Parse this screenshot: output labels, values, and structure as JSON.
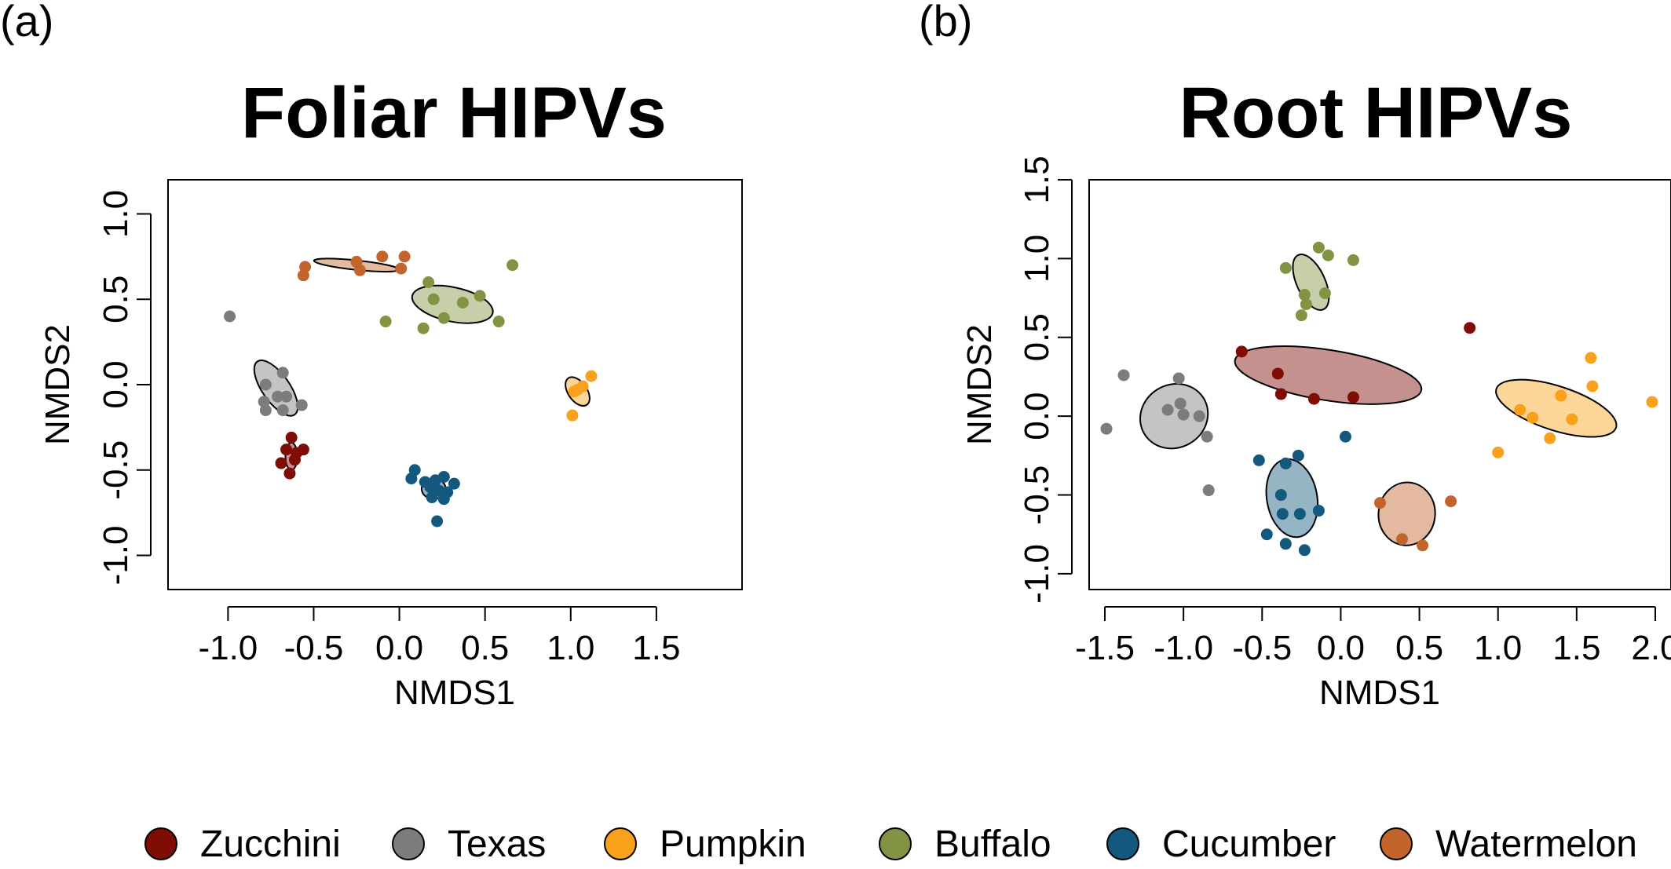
{
  "panels": [
    {
      "label": "(a)",
      "title": "Foliar HIPVs",
      "xlabel": "NMDS1",
      "ylabel": "NMDS2"
    },
    {
      "label": "(b)",
      "title": "Root HIPVs",
      "xlabel": "NMDS1",
      "ylabel": "NMDS2"
    }
  ],
  "legend": {
    "placement": "bottom",
    "items": [
      {
        "name": "Zucchini",
        "color": "#7f0c05"
      },
      {
        "name": "Texas",
        "color": "#7c7c7c"
      },
      {
        "name": "Pumpkin",
        "color": "#f9a11b"
      },
      {
        "name": "Buffalo",
        "color": "#829443"
      },
      {
        "name": "Cucumber",
        "color": "#14597d"
      },
      {
        "name": "Watermelon",
        "color": "#c2642b"
      }
    ]
  },
  "chart_data": [
    {
      "type": "scatter",
      "title": "Foliar HIPVs",
      "xlabel": "NMDS1",
      "ylabel": "NMDS2",
      "xlim": [
        -1.35,
        2.0
      ],
      "ylim": [
        -1.2,
        1.2
      ],
      "x_ticks": [
        -1.0,
        -0.5,
        0.0,
        0.5,
        1.0,
        1.5
      ],
      "x_tick_labels": [
        "-1.0",
        "-0.5",
        "0.0",
        "0.5",
        "1.0",
        "1.5"
      ],
      "y_ticks": [
        -1.0,
        -0.5,
        0.0,
        0.5,
        1.0
      ],
      "y_tick_labels": [
        "-1.0",
        "-0.5",
        "0.0",
        "0.5",
        "1.0"
      ],
      "series": [
        {
          "name": "Zucchini",
          "color": "#7f0c05",
          "points": [
            [
              -0.63,
              -0.31
            ],
            [
              -0.66,
              -0.38
            ],
            [
              -0.56,
              -0.38
            ],
            [
              -0.69,
              -0.46
            ],
            [
              -0.61,
              -0.44
            ],
            [
              -0.64,
              -0.52
            ],
            [
              -0.6,
              -0.4
            ]
          ],
          "ellipse": {
            "cx": -0.63,
            "cy": -0.42,
            "rx": 0.035,
            "ry": 0.08,
            "angle": 0
          }
        },
        {
          "name": "Texas",
          "color": "#7c7c7c",
          "points": [
            [
              -0.99,
              0.4
            ],
            [
              -0.68,
              0.07
            ],
            [
              -0.78,
              0.0
            ],
            [
              -0.71,
              -0.07
            ],
            [
              -0.66,
              -0.07
            ],
            [
              -0.79,
              -0.1
            ],
            [
              -0.68,
              -0.15
            ],
            [
              -0.78,
              -0.15
            ],
            [
              -0.57,
              -0.12
            ]
          ],
          "ellipse": {
            "cx": -0.72,
            "cy": -0.02,
            "rx": 0.08,
            "ry": 0.19,
            "angle": 35
          }
        },
        {
          "name": "Pumpkin",
          "color": "#f9a11b",
          "points": [
            [
              1.12,
              0.05
            ],
            [
              1.02,
              -0.04
            ],
            [
              1.04,
              -0.03
            ],
            [
              1.07,
              -0.01
            ],
            [
              1.01,
              -0.18
            ]
          ],
          "ellipse": {
            "cx": 1.04,
            "cy": -0.04,
            "rx": 0.055,
            "ry": 0.095,
            "angle": 35
          }
        },
        {
          "name": "Buffalo",
          "color": "#829443",
          "points": [
            [
              0.66,
              0.7
            ],
            [
              0.17,
              0.6
            ],
            [
              0.2,
              0.5
            ],
            [
              0.47,
              0.52
            ],
            [
              0.37,
              0.48
            ],
            [
              -0.08,
              0.37
            ],
            [
              0.26,
              0.39
            ],
            [
              0.58,
              0.37
            ],
            [
              0.14,
              0.33
            ]
          ],
          "ellipse": {
            "cx": 0.31,
            "cy": 0.47,
            "rx": 0.24,
            "ry": 0.1,
            "angle": -12
          }
        },
        {
          "name": "Cucumber",
          "color": "#14597d",
          "points": [
            [
              0.09,
              -0.5
            ],
            [
              0.07,
              -0.55
            ],
            [
              0.15,
              -0.57
            ],
            [
              0.21,
              -0.56
            ],
            [
              0.26,
              -0.54
            ],
            [
              0.18,
              -0.6
            ],
            [
              0.32,
              -0.58
            ],
            [
              0.23,
              -0.62
            ],
            [
              0.28,
              -0.63
            ],
            [
              0.19,
              -0.66
            ],
            [
              0.26,
              -0.67
            ],
            [
              0.22,
              -0.8
            ]
          ],
          "ellipse": {
            "cx": 0.2,
            "cy": -0.61,
            "rx": 0.07,
            "ry": 0.06,
            "angle": 0
          }
        },
        {
          "name": "Watermelon",
          "color": "#c2642b",
          "points": [
            [
              -0.55,
              0.69
            ],
            [
              -0.56,
              0.64
            ],
            [
              -0.25,
              0.72
            ],
            [
              -0.1,
              0.75
            ],
            [
              0.03,
              0.75
            ],
            [
              -0.23,
              0.67
            ],
            [
              0.01,
              0.68
            ]
          ],
          "ellipse": {
            "cx": -0.25,
            "cy": 0.7,
            "rx": 0.25,
            "ry": 0.028,
            "angle": -6
          }
        }
      ]
    },
    {
      "type": "scatter",
      "title": "Root HIPVs",
      "xlabel": "NMDS1",
      "ylabel": "NMDS2",
      "xlim": [
        -1.6,
        2.1
      ],
      "ylim": [
        -1.1,
        1.5
      ],
      "x_ticks": [
        -1.5,
        -1.0,
        -0.5,
        0.0,
        0.5,
        1.0,
        1.5,
        2.0
      ],
      "x_tick_labels": [
        "-1.5",
        "-1.0",
        "-0.5",
        "0.0",
        "0.5",
        "1.0",
        "1.5",
        "2.0"
      ],
      "y_ticks": [
        -1.0,
        -0.5,
        0.0,
        0.5,
        1.0,
        1.5
      ],
      "y_tick_labels": [
        "-1.0",
        "-0.5",
        "0.0",
        "0.5",
        "1.0",
        "1.5"
      ],
      "series": [
        {
          "name": "Zucchini",
          "color": "#7f0c05",
          "points": [
            [
              0.82,
              0.56
            ],
            [
              -0.63,
              0.41
            ],
            [
              -0.4,
              0.27
            ],
            [
              -0.38,
              0.14
            ],
            [
              -0.17,
              0.11
            ],
            [
              0.08,
              0.12
            ]
          ],
          "ellipse": {
            "cx": -0.08,
            "cy": 0.26,
            "rx": 0.6,
            "ry": 0.16,
            "angle": -9
          }
        },
        {
          "name": "Texas",
          "color": "#7c7c7c",
          "points": [
            [
              -1.38,
              0.26
            ],
            [
              -1.03,
              0.24
            ],
            [
              -1.49,
              -0.08
            ],
            [
              -1.1,
              0.04
            ],
            [
              -1.02,
              0.08
            ],
            [
              -1.0,
              0.01
            ],
            [
              -0.9,
              0.0
            ],
            [
              -0.85,
              -0.13
            ],
            [
              -0.84,
              -0.47
            ]
          ],
          "ellipse": {
            "cx": -1.06,
            "cy": 0.0,
            "rx": 0.22,
            "ry": 0.2,
            "angle": 30
          }
        },
        {
          "name": "Pumpkin",
          "color": "#f9a11b",
          "points": [
            [
              1.59,
              0.37
            ],
            [
              1.98,
              0.09
            ],
            [
              1.14,
              0.04
            ],
            [
              1.4,
              0.13
            ],
            [
              1.6,
              0.19
            ],
            [
              1.22,
              -0.01
            ],
            [
              1.47,
              -0.02
            ],
            [
              1.33,
              -0.14
            ],
            [
              1.0,
              -0.23
            ]
          ],
          "ellipse": {
            "cx": 1.37,
            "cy": 0.05,
            "rx": 0.4,
            "ry": 0.14,
            "angle": -18
          }
        },
        {
          "name": "Buffalo",
          "color": "#829443",
          "points": [
            [
              -0.14,
              1.07
            ],
            [
              -0.08,
              1.02
            ],
            [
              0.08,
              0.99
            ],
            [
              -0.35,
              0.94
            ],
            [
              -0.23,
              0.77
            ],
            [
              -0.1,
              0.78
            ],
            [
              -0.22,
              0.71
            ],
            [
              -0.25,
              0.64
            ]
          ],
          "ellipse": {
            "cx": -0.19,
            "cy": 0.85,
            "rx": 0.09,
            "ry": 0.19,
            "angle": 25
          }
        },
        {
          "name": "Cucumber",
          "color": "#14597d",
          "points": [
            [
              -0.27,
              -0.25
            ],
            [
              -0.35,
              -0.3
            ],
            [
              -0.52,
              -0.28
            ],
            [
              0.03,
              -0.13
            ],
            [
              -0.38,
              -0.5
            ],
            [
              -0.14,
              -0.6
            ],
            [
              -0.37,
              -0.62
            ],
            [
              -0.26,
              -0.62
            ],
            [
              -0.47,
              -0.75
            ],
            [
              -0.35,
              -0.81
            ],
            [
              -0.23,
              -0.85
            ]
          ],
          "ellipse": {
            "cx": -0.31,
            "cy": -0.52,
            "rx": 0.16,
            "ry": 0.25,
            "angle": 10
          }
        },
        {
          "name": "Watermelon",
          "color": "#c2642b",
          "points": [
            [
              0.25,
              -0.55
            ],
            [
              0.7,
              -0.54
            ],
            [
              0.39,
              -0.78
            ],
            [
              0.52,
              -0.82
            ]
          ],
          "ellipse": {
            "cx": 0.42,
            "cy": -0.62,
            "rx": 0.18,
            "ry": 0.2,
            "angle": -5
          }
        }
      ]
    }
  ]
}
